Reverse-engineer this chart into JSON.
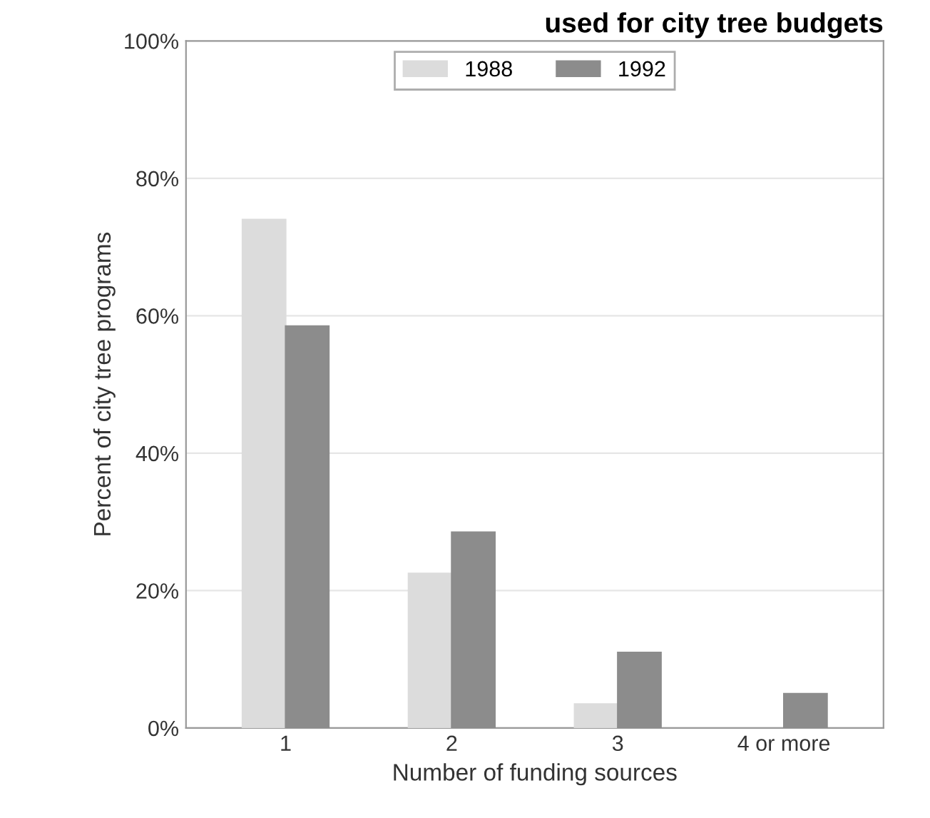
{
  "chart_data": {
    "type": "bar",
    "title": "used for city tree budgets",
    "xlabel": "Number of funding sources",
    "ylabel": "Percent of city tree programs",
    "categories": [
      "1",
      "2",
      "3",
      "4 or more"
    ],
    "series": [
      {
        "name": "1988",
        "color": "#dcdcdc",
        "values": [
          74,
          22.5,
          3.5,
          null
        ]
      },
      {
        "name": "1992",
        "color": "#8c8c8c",
        "values": [
          58.5,
          28.5,
          11,
          5
        ]
      }
    ],
    "ylim": [
      0,
      100
    ],
    "yticks": [
      {
        "value": 0,
        "label": "0%"
      },
      {
        "value": 20,
        "label": "20%"
      },
      {
        "value": 40,
        "label": "40%"
      },
      {
        "value": 60,
        "label": "60%"
      },
      {
        "value": 80,
        "label": "80%"
      },
      {
        "value": 100,
        "label": "100%"
      }
    ],
    "grid": "y",
    "legend": "top"
  }
}
